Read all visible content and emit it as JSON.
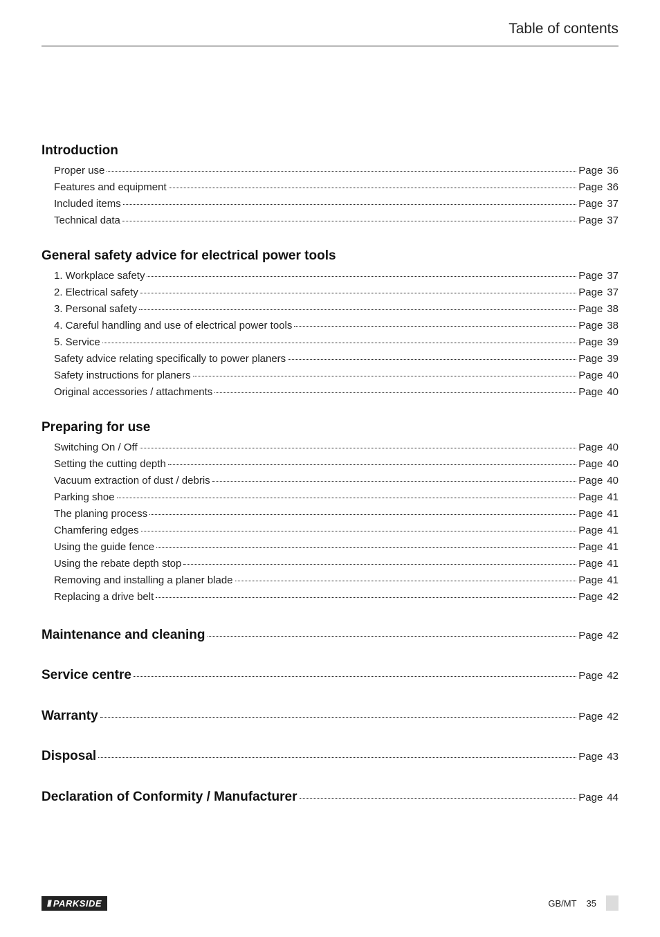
{
  "header": {
    "title": "Table of contents"
  },
  "sections": [
    {
      "heading": "Introduction",
      "heading_has_page": false,
      "items": [
        {
          "label": "Proper use",
          "page": "36"
        },
        {
          "label": "Features and equipment",
          "page": "36"
        },
        {
          "label": "Included items",
          "page": "37"
        },
        {
          "label": "Technical data",
          "page": "37"
        }
      ]
    },
    {
      "heading": "General safety advice for electrical power tools",
      "heading_has_page": false,
      "items": [
        {
          "label": "1. Workplace safety",
          "page": "37"
        },
        {
          "label": "2. Electrical safety",
          "page": "37"
        },
        {
          "label": "3. Personal safety",
          "page": "38"
        },
        {
          "label": "4. Careful handling and use of electrical power tools",
          "page": "38"
        },
        {
          "label": "5. Service",
          "page": "39"
        },
        {
          "label": "Safety advice relating specifically to power planers",
          "page": "39"
        },
        {
          "label": "Safety instructions for planers",
          "page": "40"
        },
        {
          "label": "Original accessories / attachments",
          "page": "40"
        }
      ]
    },
    {
      "heading": "Preparing for use",
      "heading_has_page": false,
      "items": [
        {
          "label": "Switching On / Off",
          "page": "40"
        },
        {
          "label": "Setting the cutting depth",
          "page": "40"
        },
        {
          "label": "Vacuum extraction of dust / debris",
          "page": "40"
        },
        {
          "label": "Parking shoe",
          "page": "41"
        },
        {
          "label": "The planing process",
          "page": "41"
        },
        {
          "label": "Chamfering edges",
          "page": "41"
        },
        {
          "label": "Using the guide fence",
          "page": "41"
        },
        {
          "label": "Using the rebate depth stop",
          "page": "41"
        },
        {
          "label": "Removing and installing a planer blade",
          "page": "41"
        },
        {
          "label": "Replacing a drive belt",
          "page": "42"
        }
      ]
    },
    {
      "heading": "Maintenance and cleaning",
      "heading_has_page": true,
      "page": "42",
      "items": []
    },
    {
      "heading": "Service centre",
      "heading_has_page": true,
      "page": "42",
      "items": []
    },
    {
      "heading": "Warranty",
      "heading_has_page": true,
      "page": "42",
      "items": []
    },
    {
      "heading": "Disposal",
      "heading_has_page": true,
      "page": "43",
      "items": []
    },
    {
      "heading": "Declaration of Conformity / Manufacturer",
      "heading_has_page": true,
      "page": "44",
      "items": []
    }
  ],
  "page_label": "Page",
  "footer": {
    "brand_stripes": "///",
    "brand_name": "PARKSIDE",
    "region": "GB/MT",
    "page_number": "35"
  }
}
